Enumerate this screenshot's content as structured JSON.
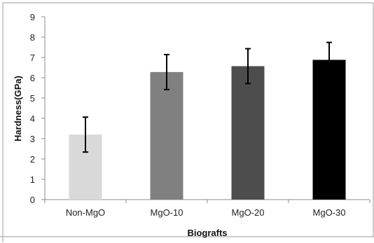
{
  "chart_data": {
    "type": "bar",
    "categories": [
      "Non-MgO",
      "MgO-10",
      "MgO-20",
      "MgO-30"
    ],
    "values": [
      3.2,
      6.28,
      6.57,
      6.88
    ],
    "error": [
      0.86,
      0.86,
      0.86,
      0.86
    ],
    "colors": [
      "#d9d9d9",
      "#808080",
      "#4d4d4d",
      "#000000"
    ],
    "title": "",
    "xlabel": "Biografts",
    "ylabel": "Hardness(GPa)",
    "ylim": [
      0,
      9
    ],
    "yticks": [
      "0",
      "1",
      "2",
      "3",
      "4",
      "5",
      "6",
      "7",
      "8",
      "9"
    ],
    "grid": false,
    "legend": "none"
  }
}
